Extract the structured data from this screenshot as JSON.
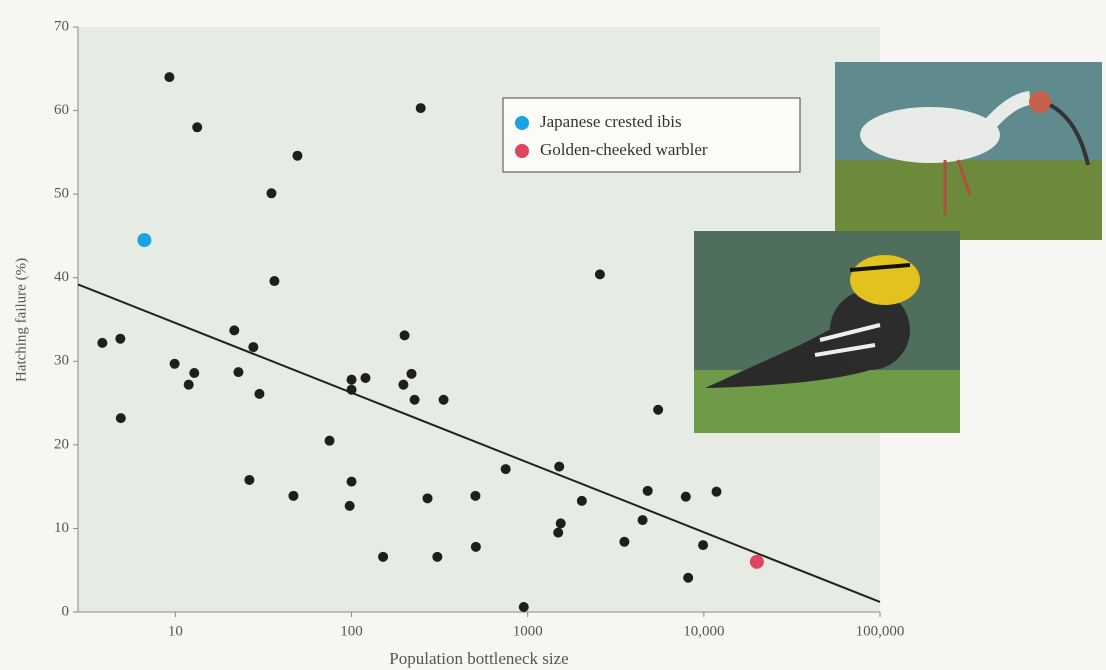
{
  "chart_data": {
    "type": "scatter",
    "x_label": "Population bottleneck size",
    "y_label": "Hatching failure (%)",
    "xscale": "log",
    "xlim": [
      2.8,
      100000
    ],
    "ylim": [
      0,
      70
    ],
    "xticks": [
      10,
      100,
      1000,
      {
        "value": 10000,
        "label": "10,000"
      },
      {
        "value": 100000,
        "label": "100,000"
      }
    ],
    "yticks": [
      0,
      10,
      20,
      30,
      40,
      50,
      60,
      70
    ],
    "background": "#e6ebe3",
    "points": {
      "color": "#1e1e1e",
      "x": [
        3.85,
        4.87,
        4.9,
        9.25,
        9.9,
        11.9,
        12.8,
        13.3,
        21.6,
        22.8,
        27.7,
        30,
        35.1,
        36.5,
        26.3,
        46.8,
        49.3,
        75,
        97.6,
        100,
        100,
        100,
        120,
        151,
        197,
        200,
        219,
        228,
        247,
        270,
        307,
        333,
        505,
        508,
        750,
        950,
        1490,
        1540,
        1510,
        2030,
        2570,
        3540,
        4490,
        4800,
        5500,
        7900,
        8150,
        9900,
        11800
      ],
      "y": [
        32.2,
        32.7,
        23.2,
        64.0,
        29.7,
        27.2,
        28.6,
        58.0,
        33.7,
        28.7,
        31.7,
        26.1,
        50.1,
        39.6,
        15.8,
        13.9,
        54.6,
        20.5,
        12.7,
        27.8,
        26.6,
        15.6,
        28.0,
        6.6,
        27.2,
        33.1,
        28.5,
        25.4,
        60.3,
        13.6,
        6.6,
        25.4,
        13.9,
        7.8,
        17.1,
        0.6,
        9.5,
        10.6,
        17.4,
        13.3,
        40.4,
        8.4,
        11.0,
        14.5,
        24.2,
        13.8,
        4.1,
        8.0,
        14.4
      ]
    },
    "series": [
      {
        "name": "Japanese crested ibis",
        "color": "#1aa3de",
        "x": [
          6.67
        ],
        "values": [
          44.5
        ]
      },
      {
        "name": "Golden-cheeked warbler",
        "color": "#e0445f",
        "x": [
          20000
        ],
        "values": [
          6.0
        ]
      }
    ],
    "trendline": {
      "color": "#222222",
      "x": [
        2.8,
        100000
      ],
      "y": [
        39.2,
        1.2
      ]
    }
  }
}
